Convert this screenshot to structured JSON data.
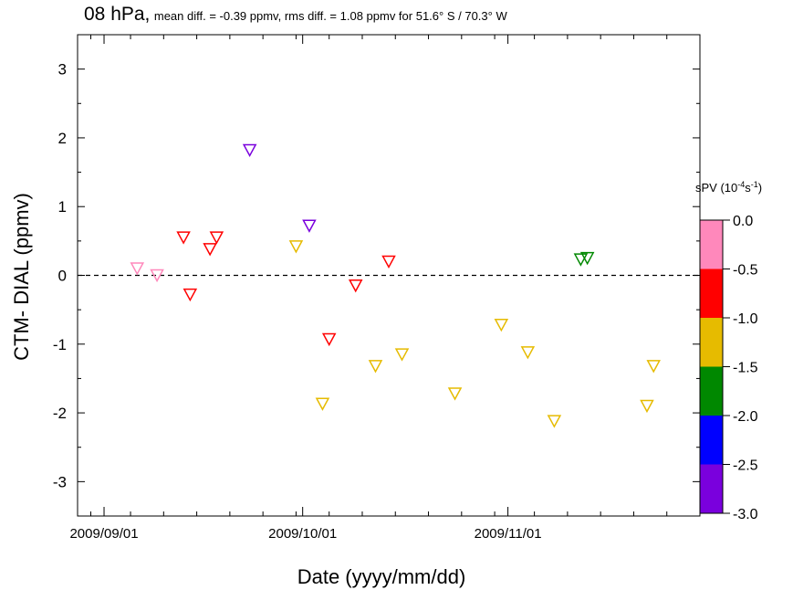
{
  "chart_data": {
    "type": "scatter",
    "title": "08 hPa,",
    "subtitle": "mean diff. = -0.39 ppmv, rms diff. = 1.08 ppmv for 51.6° S / 70.3° W",
    "xlabel": "Date (yyyy/mm/dd)",
    "ylabel": "CTM- DIAL (ppmv)",
    "xlim": [
      "2009-08-28",
      "2009-11-30"
    ],
    "ylim": [
      -3.5,
      3.5
    ],
    "x_tick_labels": [
      "2009/09/01",
      "2009/10/01",
      "2009/11/01"
    ],
    "y_ticks": [
      -3,
      -2,
      -1,
      0,
      1,
      2,
      3
    ],
    "y_tick_labels": [
      "-3",
      "-2",
      "-1",
      "0",
      "1",
      "2",
      "3"
    ],
    "reference_line": 0,
    "marker": "open-triangle-down",
    "colorbar": {
      "label_prefix": "sPV (10",
      "label_exp1": "-4",
      "label_mid": "s",
      "label_exp2": "-1",
      "label_suffix": ")",
      "ticks": [
        "0.0",
        "-0.5",
        "-1.0",
        "-1.5",
        "-2.0",
        "-2.5",
        "-3.0"
      ],
      "bands": [
        {
          "from": 0.0,
          "to": -0.5,
          "color": "#ff88bb"
        },
        {
          "from": -0.5,
          "to": -1.0,
          "color": "#ff0000"
        },
        {
          "from": -1.0,
          "to": -1.5,
          "color": "#e6bb00"
        },
        {
          "from": -1.5,
          "to": -2.0,
          "color": "#008800"
        },
        {
          "from": -2.0,
          "to": -2.5,
          "color": "#0000ff"
        },
        {
          "from": -2.5,
          "to": -3.0,
          "color": "#7a00dd"
        }
      ]
    },
    "points": [
      {
        "x": "2009-09-06",
        "y": 0.1,
        "color": "#ff88bb"
      },
      {
        "x": "2009-09-09",
        "y": 0.0,
        "color": "#ff88bb"
      },
      {
        "x": "2009-09-13",
        "y": 0.55,
        "color": "#ff0000"
      },
      {
        "x": "2009-09-14",
        "y": -0.28,
        "color": "#ff0000"
      },
      {
        "x": "2009-09-17",
        "y": 0.38,
        "color": "#ff0000"
      },
      {
        "x": "2009-09-18",
        "y": 0.55,
        "color": "#ff0000"
      },
      {
        "x": "2009-09-23",
        "y": 1.82,
        "color": "#7a00dd"
      },
      {
        "x": "2009-09-30",
        "y": 0.42,
        "color": "#e6bb00"
      },
      {
        "x": "2009-10-02",
        "y": 0.72,
        "color": "#7a00dd"
      },
      {
        "x": "2009-10-04",
        "y": -1.87,
        "color": "#e6bb00"
      },
      {
        "x": "2009-10-05",
        "y": -0.93,
        "color": "#ff0000"
      },
      {
        "x": "2009-10-09",
        "y": -0.15,
        "color": "#ff0000"
      },
      {
        "x": "2009-10-12",
        "y": -1.32,
        "color": "#e6bb00"
      },
      {
        "x": "2009-10-14",
        "y": 0.2,
        "color": "#ff0000"
      },
      {
        "x": "2009-10-16",
        "y": -1.15,
        "color": "#e6bb00"
      },
      {
        "x": "2009-10-24",
        "y": -1.72,
        "color": "#e6bb00"
      },
      {
        "x": "2009-10-31",
        "y": -0.72,
        "color": "#e6bb00"
      },
      {
        "x": "2009-11-04",
        "y": -1.12,
        "color": "#e6bb00"
      },
      {
        "x": "2009-11-08",
        "y": -2.12,
        "color": "#e6bb00"
      },
      {
        "x": "2009-11-12",
        "y": 0.23,
        "color": "#008800"
      },
      {
        "x": "2009-11-13",
        "y": 0.25,
        "color": "#008800"
      },
      {
        "x": "2009-11-22",
        "y": -1.9,
        "color": "#e6bb00"
      },
      {
        "x": "2009-11-23",
        "y": -1.32,
        "color": "#e6bb00"
      }
    ]
  }
}
